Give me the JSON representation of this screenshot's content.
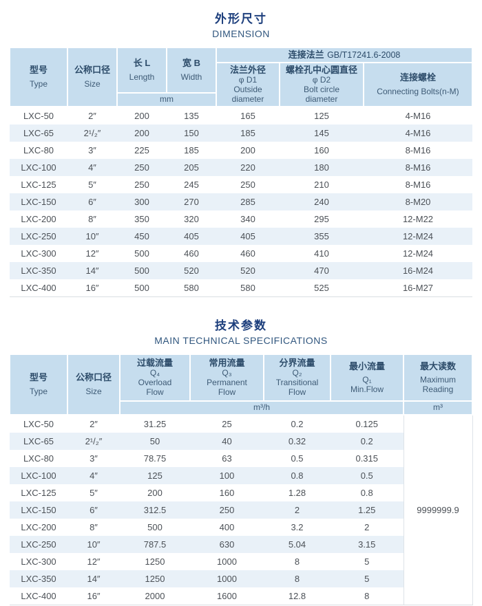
{
  "colors": {
    "header_bg": "#c6ddee",
    "stripe_bg": "#e9f1f8",
    "title_cn_color": "#1c3e7c",
    "title_en_color": "#30567e",
    "header_text": "#2d4c6a",
    "cell_text": "#4b5056"
  },
  "dimension": {
    "title_cn": "外形尺寸",
    "title_en": "DIMENSION",
    "header": {
      "type_cn": "型号",
      "type_en": "Type",
      "size_cn": "公称口径",
      "size_en": "Size",
      "length_cn": "长 L",
      "length_en": "Length",
      "width_cn": "宽 B",
      "width_en": "Width",
      "flange_cn": "连接法兰",
      "flange_std": "GB/T17241.6-2008",
      "d1_cn": "法兰外径",
      "d1_sym": "φ D1",
      "d1_en1": "Outside",
      "d1_en2": "diameter",
      "d2_cn": "螺栓孔中心圆直径",
      "d2_sym": "φ D2",
      "d2_en1": "Bolt circle",
      "d2_en2": "diameter",
      "bolts_cn": "连接螺栓",
      "bolts_en": "Connecting  Bolts(n-M)",
      "unit_mm": "mm"
    },
    "rows": [
      [
        "LXC-50",
        "2″",
        "200",
        "135",
        "165",
        "125",
        "4-M16"
      ],
      [
        "LXC-65",
        "2¹/₂″",
        "200",
        "150",
        "185",
        "145",
        "4-M16"
      ],
      [
        "LXC-80",
        "3″",
        "225",
        "185",
        "200",
        "160",
        "8-M16"
      ],
      [
        "LXC-100",
        "4″",
        "250",
        "205",
        "220",
        "180",
        "8-M16"
      ],
      [
        "LXC-125",
        "5″",
        "250",
        "245",
        "250",
        "210",
        "8-M16"
      ],
      [
        "LXC-150",
        "6″",
        "300",
        "270",
        "285",
        "240",
        "8-M20"
      ],
      [
        "LXC-200",
        "8″",
        "350",
        "320",
        "340",
        "295",
        "12-M22"
      ],
      [
        "LXC-250",
        "10″",
        "450",
        "405",
        "405",
        "355",
        "12-M24"
      ],
      [
        "LXC-300",
        "12″",
        "500",
        "460",
        "460",
        "410",
        "12-M24"
      ],
      [
        "LXC-350",
        "14″",
        "500",
        "520",
        "520",
        "470",
        "16-M24"
      ],
      [
        "LXC-400",
        "16″",
        "500",
        "580",
        "580",
        "525",
        "16-M27"
      ]
    ]
  },
  "specs": {
    "title_cn": "技术参数",
    "title_en": "MAIN TECHNICAL SPECIFICATIONS",
    "header": {
      "type_cn": "型号",
      "type_en": "Type",
      "size_cn": "公称口径",
      "size_en": "Size",
      "q4_cn": "过载流量",
      "q4_sym": "Q₄",
      "q4_en1": "Overload",
      "q4_en2": "Flow",
      "q3_cn": "常用流量",
      "q3_sym": "Q₃",
      "q3_en1": "Permanent",
      "q3_en2": "Flow",
      "q2_cn": "分界流量",
      "q2_sym": "Q₂",
      "q2_en1": "Transitional",
      "q2_en2": "Flow",
      "q1_cn": "最小流量",
      "q1_sym": "Q₁",
      "q1_en1": "Min.Flow",
      "max_cn": "最大读数",
      "max_en1": "Maximum",
      "max_en2": "Reading",
      "unit_flow": "m³/h",
      "unit_reading": "m³"
    },
    "rows": [
      [
        "LXC-50",
        "2″",
        "31.25",
        "25",
        "0.2",
        "0.125"
      ],
      [
        "LXC-65",
        "2¹/₂″",
        "50",
        "40",
        "0.32",
        "0.2"
      ],
      [
        "LXC-80",
        "3″",
        "78.75",
        "63",
        "0.5",
        "0.315"
      ],
      [
        "LXC-100",
        "4″",
        "125",
        "100",
        "0.8",
        "0.5"
      ],
      [
        "LXC-125",
        "5″",
        "200",
        "160",
        "1.28",
        "0.8"
      ],
      [
        "LXC-150",
        "6″",
        "312.5",
        "250",
        "2",
        "1.25"
      ],
      [
        "LXC-200",
        "8″",
        "500",
        "400",
        "3.2",
        "2"
      ],
      [
        "LXC-250",
        "10″",
        "787.5",
        "630",
        "5.04",
        "3.15"
      ],
      [
        "LXC-300",
        "12″",
        "1250",
        "1000",
        "8",
        "5"
      ],
      [
        "LXC-350",
        "14″",
        "1250",
        "1000",
        "8",
        "5"
      ],
      [
        "LXC-400",
        "16″",
        "2000",
        "1600",
        "12.8",
        "8"
      ]
    ],
    "max_reading": "9999999.9"
  }
}
